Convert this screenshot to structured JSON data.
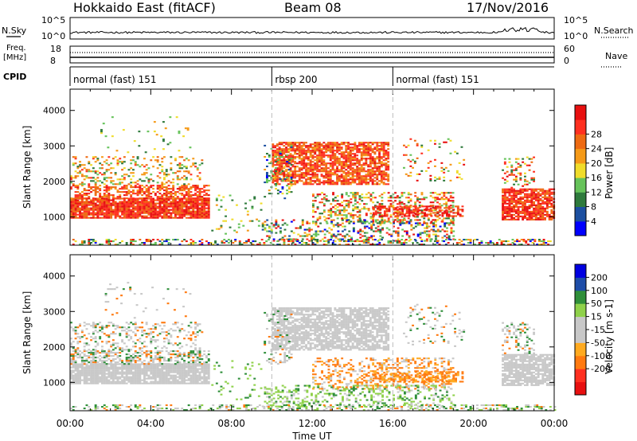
{
  "header": {
    "station": "Hokkaido East (fitACF)",
    "beam": "Beam 08",
    "date": "17/Nov/2016"
  },
  "panels": {
    "nsky_label": "N.Sky",
    "nsky_ticks": [
      "10^5",
      "10^0"
    ],
    "nsearch_label": "N.Search",
    "freq_label_1": "Freq.",
    "freq_label_2": "[MHz]",
    "freq_ticks": [
      "18",
      "8"
    ],
    "nave_label": "Nave",
    "nave_ticks": [
      "60",
      "0"
    ],
    "cpid_label": "CPID"
  },
  "cpid_segments": [
    {
      "label": "normal (fast) 151",
      "start": 0
    },
    {
      "label": "rbsp 200",
      "start": 10
    },
    {
      "label": "normal (fast) 151",
      "start": 16
    }
  ],
  "colors": {
    "power": [
      "#0000ff",
      "#1c4fa0",
      "#2e7a3c",
      "#66c35a",
      "#f0dc2a",
      "#f59a18",
      "#ee6a12",
      "#ff3020",
      "#e81010"
    ],
    "velocity": [
      "#e81010",
      "#ff3020",
      "#ff7a10",
      "#ffaa20",
      "#c8c8c8",
      "#c8c8c8",
      "#8fd14a",
      "#2f8f3a",
      "#1e4da8",
      "#0000e0"
    ]
  },
  "chart_data": [
    {
      "type": "heatmap",
      "name": "power",
      "xlabel": "Time UT",
      "ylabel": "Slant Range [km]",
      "x_ticks": [
        "00:00",
        "04:00",
        "08:00",
        "12:00",
        "16:00",
        "20:00",
        "00:00"
      ],
      "xlim": [
        0,
        24
      ],
      "ylim": [
        200,
        4600
      ],
      "y_ticks": [
        1000,
        2000,
        3000,
        4000
      ],
      "colorbar_label": "Power [dB]",
      "colorbar_ticks": [
        "4",
        "8",
        "12",
        "16",
        "20",
        "24",
        "28"
      ],
      "vlines": [
        10,
        16
      ]
    },
    {
      "type": "heatmap",
      "name": "velocity",
      "xlabel": "Time UT",
      "ylabel": "Slant Range [km]",
      "x_ticks": [
        "00:00",
        "04:00",
        "08:00",
        "12:00",
        "16:00",
        "20:00",
        "00:00"
      ],
      "xlim": [
        0,
        24
      ],
      "ylim": [
        200,
        4600
      ],
      "y_ticks": [
        1000,
        2000,
        3000,
        4000
      ],
      "colorbar_label": "Velocity [m s-1]",
      "colorbar_ticks": [
        "200",
        "100",
        "50",
        "15",
        "-15",
        "-50",
        "-100",
        "-200"
      ],
      "vlines": [
        10,
        16
      ]
    }
  ]
}
